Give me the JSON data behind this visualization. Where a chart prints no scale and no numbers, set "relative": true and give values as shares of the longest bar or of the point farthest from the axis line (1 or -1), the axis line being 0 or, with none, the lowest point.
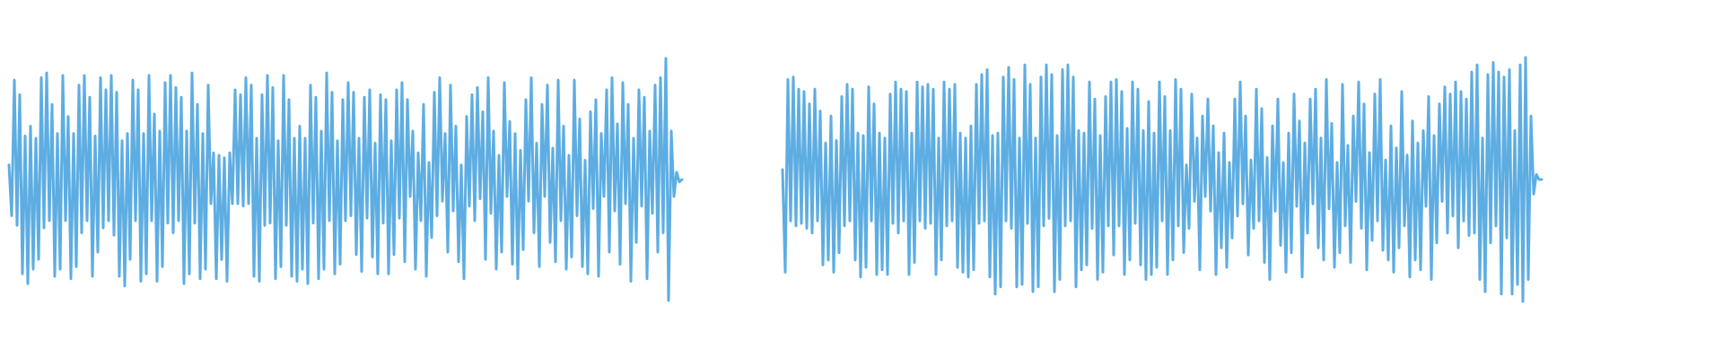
{
  "chart_data": [
    {
      "type": "line",
      "relative": true,
      "color": "#5dade2",
      "categories": [
        null,
        null,
        null,
        null,
        null,
        null,
        null,
        null,
        null,
        null,
        null,
        null,
        null,
        null,
        null,
        null,
        null,
        null,
        null,
        null,
        null,
        null,
        null,
        null,
        null,
        null,
        null,
        null,
        null,
        null,
        null,
        null,
        null,
        null,
        null,
        null,
        null,
        null,
        null,
        null,
        null,
        null,
        null,
        null,
        null,
        null,
        null,
        null,
        null,
        null,
        null,
        null,
        null,
        null,
        null,
        null,
        null,
        null,
        null,
        null,
        null,
        null,
        null,
        null,
        null,
        null,
        null,
        null,
        null,
        null,
        null,
        null,
        null,
        null,
        null,
        null,
        null,
        null,
        null,
        null,
        null,
        null,
        null,
        null,
        null,
        null,
        null,
        null,
        null,
        null,
        null,
        null,
        null,
        null,
        null,
        null,
        null,
        null,
        null,
        null,
        null,
        null,
        null,
        null,
        null,
        null,
        null,
        null,
        null,
        null,
        null,
        null,
        null,
        null,
        null,
        null,
        null,
        null,
        null,
        null,
        null,
        null,
        null,
        null,
        null,
        null,
        null,
        null,
        null,
        null,
        null,
        null,
        null,
        null,
        null,
        null,
        null,
        null,
        null,
        null,
        null,
        null,
        null,
        null,
        null,
        null,
        null,
        null,
        null,
        null,
        null,
        null,
        null,
        null,
        null,
        null,
        null,
        null,
        null,
        null,
        null,
        null,
        null,
        null,
        null,
        null,
        null,
        null,
        null,
        null,
        null,
        null,
        null,
        null,
        null,
        null,
        null,
        null,
        null,
        null,
        null,
        null,
        null,
        null,
        null,
        null,
        null,
        null,
        null,
        null,
        null,
        null,
        null,
        null,
        null,
        null,
        null,
        null,
        null,
        null,
        null,
        null,
        null,
        null,
        null,
        null,
        null,
        null,
        null,
        null,
        null,
        null,
        null,
        null,
        null,
        null,
        null,
        null,
        null,
        null,
        null,
        null,
        null,
        null,
        null,
        null,
        null,
        null,
        null,
        null,
        null,
        null,
        null,
        null,
        null,
        null,
        null,
        null,
        null,
        null,
        null,
        null,
        null,
        null,
        null,
        null,
        null,
        null,
        null,
        null,
        null
      ],
      "values": [
        0.56,
        0.35,
        0.91,
        0.31,
        0.85,
        0.11,
        0.68,
        0.07,
        0.72,
        0.13,
        0.67,
        0.17,
        0.92,
        0.3,
        0.94,
        0.33,
        0.81,
        0.1,
        0.69,
        0.13,
        0.93,
        0.33,
        0.76,
        0.09,
        0.69,
        0.14,
        0.89,
        0.28,
        0.93,
        0.33,
        0.84,
        0.1,
        0.68,
        0.2,
        0.92,
        0.3,
        0.87,
        0.33,
        0.93,
        0.27,
        0.86,
        0.1,
        0.66,
        0.06,
        0.69,
        0.17,
        0.91,
        0.33,
        0.87,
        0.08,
        0.69,
        0.11,
        0.93,
        0.33,
        0.77,
        0.08,
        0.7,
        0.14,
        0.9,
        0.32,
        0.93,
        0.28,
        0.88,
        0.33,
        0.84,
        0.07,
        0.7,
        0.11,
        0.94,
        0.32,
        0.81,
        0.09,
        0.69,
        0.13,
        0.89,
        0.4,
        0.61,
        0.09,
        0.6,
        0.17,
        0.59,
        0.08,
        0.61,
        0.4,
        0.87,
        0.4,
        0.85,
        0.39,
        0.92,
        0.4,
        0.89,
        0.1,
        0.67,
        0.08,
        0.85,
        0.31,
        0.93,
        0.32,
        0.88,
        0.09,
        0.66,
        0.14,
        0.93,
        0.31,
        0.83,
        0.1,
        0.67,
        0.08,
        0.72,
        0.13,
        0.67,
        0.07,
        0.89,
        0.32,
        0.84,
        0.09,
        0.7,
        0.13,
        0.94,
        0.33,
        0.86,
        0.11,
        0.66,
        0.15,
        0.83,
        0.33,
        0.9,
        0.35,
        0.86,
        0.19,
        0.67,
        0.12,
        0.84,
        0.34,
        0.87,
        0.18,
        0.65,
        0.11,
        0.85,
        0.32,
        0.83,
        0.11,
        0.66,
        0.19,
        0.87,
        0.34,
        0.9,
        0.16,
        0.83,
        0.43,
        0.7,
        0.13,
        0.61,
        0.33,
        0.81,
        0.1,
        0.57,
        0.26,
        0.86,
        0.35,
        0.92,
        0.41,
        0.69,
        0.2,
        0.89,
        0.37,
        0.72,
        0.16,
        0.56,
        0.09,
        0.76,
        0.39,
        0.85,
        0.33,
        0.88,
        0.42,
        0.78,
        0.17,
        0.92,
        0.36,
        0.7,
        0.13,
        0.6,
        0.2,
        0.9,
        0.43,
        0.74,
        0.15,
        0.69,
        0.09,
        0.62,
        0.21,
        0.83,
        0.41,
        0.92,
        0.28,
        0.65,
        0.14,
        0.81,
        0.43,
        0.89,
        0.24,
        0.63,
        0.16,
        0.91,
        0.33,
        0.72,
        0.13,
        0.6,
        0.18,
        0.91,
        0.35,
        0.75,
        0.14,
        0.58,
        0.11,
        0.78,
        0.38,
        0.83,
        0.1,
        0.69,
        0.43,
        0.87,
        0.2,
        0.92,
        0.37,
        0.73,
        0.15,
        0.9,
        0.4,
        0.81,
        0.08,
        0.67,
        0.24,
        0.87,
        0.39,
        0.84,
        0.09,
        0.7,
        0.36,
        0.89,
        0.2,
        0.92,
        0.28,
        1.0,
        0.0,
        0.7,
        0.43,
        0.53,
        0.49,
        0.5
      ]
    },
    {
      "type": "line",
      "relative": true,
      "color": "#5dade2",
      "categories": [
        null,
        null,
        null,
        null,
        null,
        null,
        null,
        null,
        null,
        null,
        null,
        null,
        null,
        null,
        null,
        null,
        null,
        null,
        null,
        null,
        null,
        null,
        null,
        null,
        null,
        null,
        null,
        null,
        null,
        null,
        null,
        null,
        null,
        null,
        null,
        null,
        null,
        null,
        null,
        null,
        null,
        null,
        null,
        null,
        null,
        null,
        null,
        null,
        null,
        null,
        null,
        null,
        null,
        null,
        null,
        null,
        null,
        null,
        null,
        null,
        null,
        null,
        null,
        null,
        null,
        null,
        null,
        null,
        null,
        null,
        null,
        null,
        null,
        null,
        null,
        null,
        null,
        null,
        null,
        null,
        null,
        null,
        null,
        null,
        null,
        null,
        null,
        null,
        null,
        null,
        null,
        null,
        null,
        null,
        null,
        null,
        null,
        null,
        null,
        null,
        null,
        null,
        null,
        null,
        null,
        null,
        null,
        null,
        null,
        null,
        null,
        null,
        null,
        null,
        null,
        null,
        null,
        null,
        null,
        null,
        null,
        null,
        null,
        null,
        null,
        null,
        null,
        null,
        null,
        null,
        null,
        null,
        null,
        null,
        null,
        null,
        null,
        null,
        null,
        null,
        null,
        null,
        null,
        null,
        null,
        null,
        null,
        null,
        null,
        null,
        null,
        null,
        null,
        null,
        null,
        null,
        null,
        null,
        null,
        null,
        null,
        null,
        null,
        null,
        null,
        null,
        null,
        null,
        null,
        null,
        null,
        null,
        null,
        null,
        null,
        null,
        null,
        null,
        null,
        null,
        null,
        null,
        null,
        null,
        null,
        null,
        null,
        null,
        null,
        null,
        null,
        null,
        null,
        null,
        null,
        null,
        null,
        null,
        null,
        null,
        null,
        null,
        null,
        null,
        null,
        null,
        null,
        null,
        null,
        null,
        null,
        null,
        null,
        null,
        null,
        null,
        null,
        null,
        null,
        null,
        null,
        null,
        null,
        null,
        null,
        null,
        null,
        null,
        null,
        null,
        null,
        null,
        null,
        null,
        null,
        null,
        null,
        null,
        null,
        null,
        null,
        null,
        null,
        null,
        null,
        null,
        null,
        null,
        null,
        null,
        null,
        null,
        null,
        null,
        null,
        null,
        null,
        null,
        null,
        null,
        null,
        null,
        null,
        null,
        null,
        null,
        null,
        null,
        null,
        null,
        null,
        null,
        null,
        null,
        null,
        null,
        null,
        null,
        null,
        null,
        null,
        null,
        null
      ],
      "values": [
        0.54,
        0.12,
        0.91,
        0.33,
        0.92,
        0.31,
        0.87,
        0.32,
        0.86,
        0.3,
        0.81,
        0.28,
        0.87,
        0.33,
        0.78,
        0.15,
        0.65,
        0.17,
        0.76,
        0.12,
        0.66,
        0.2,
        0.84,
        0.31,
        0.89,
        0.33,
        0.87,
        0.17,
        0.69,
        0.1,
        0.68,
        0.14,
        0.88,
        0.33,
        0.81,
        0.11,
        0.69,
        0.13,
        0.67,
        0.11,
        0.85,
        0.32,
        0.9,
        0.28,
        0.87,
        0.33,
        0.86,
        0.11,
        0.69,
        0.16,
        0.9,
        0.33,
        0.88,
        0.3,
        0.89,
        0.32,
        0.87,
        0.11,
        0.67,
        0.17,
        0.9,
        0.31,
        0.87,
        0.33,
        0.89,
        0.14,
        0.69,
        0.12,
        0.67,
        0.1,
        0.72,
        0.13,
        0.89,
        0.32,
        0.93,
        0.33,
        0.95,
        0.1,
        0.68,
        0.03,
        0.69,
        0.06,
        0.92,
        0.33,
        0.96,
        0.3,
        0.91,
        0.06,
        0.67,
        0.07,
        0.97,
        0.32,
        0.89,
        0.04,
        0.67,
        0.06,
        0.92,
        0.31,
        0.97,
        0.34,
        0.93,
        0.04,
        0.68,
        0.09,
        0.95,
        0.31,
        0.97,
        0.33,
        0.92,
        0.06,
        0.7,
        0.13,
        0.69,
        0.15,
        0.9,
        0.3,
        0.83,
        0.09,
        0.68,
        0.12,
        0.84,
        0.31,
        0.9,
        0.19,
        0.91,
        0.31,
        0.86,
        0.11,
        0.71,
        0.17,
        0.9,
        0.32,
        0.87,
        0.15,
        0.7,
        0.09,
        0.82,
        0.11,
        0.69,
        0.14,
        0.9,
        0.33,
        0.84,
        0.11,
        0.7,
        0.17,
        0.91,
        0.31,
        0.87,
        0.2,
        0.56,
        0.3,
        0.85,
        0.41,
        0.67,
        0.13,
        0.76,
        0.43,
        0.83,
        0.37,
        0.72,
        0.11,
        0.61,
        0.22,
        0.69,
        0.14,
        0.57,
        0.26,
        0.83,
        0.35,
        0.9,
        0.4,
        0.76,
        0.19,
        0.58,
        0.3,
        0.87,
        0.33,
        0.79,
        0.16,
        0.59,
        0.09,
        0.72,
        0.37,
        0.83,
        0.23,
        0.57,
        0.12,
        0.69,
        0.2,
        0.85,
        0.39,
        0.74,
        0.1,
        0.65,
        0.28,
        0.83,
        0.4,
        0.87,
        0.22,
        0.67,
        0.17,
        0.91,
        0.38,
        0.73,
        0.14,
        0.57,
        0.2,
        0.89,
        0.31,
        0.64,
        0.16,
        0.76,
        0.41,
        0.9,
        0.3,
        0.81,
        0.13,
        0.61,
        0.25,
        0.85,
        0.33,
        0.91,
        0.21,
        0.58,
        0.17,
        0.72,
        0.12,
        0.63,
        0.22,
        0.86,
        0.31,
        0.6,
        0.1,
        0.74,
        0.17,
        0.65,
        0.13,
        0.7,
        0.39,
        0.84,
        0.09,
        0.68,
        0.24,
        0.81,
        0.41,
        0.88,
        0.28,
        0.85,
        0.35,
        0.9,
        0.22,
        0.86,
        0.33,
        0.83,
        0.27,
        0.94,
        0.28,
        0.97,
        0.09,
        0.67,
        0.04,
        0.93,
        0.24,
        0.98,
        0.31,
        0.94,
        0.03,
        0.92,
        0.26,
        0.95,
        0.03,
        0.7,
        0.07,
        0.97,
        0.0,
        1.0,
        0.09,
        0.76,
        0.44,
        0.52,
        0.5,
        0.5
      ]
    }
  ]
}
